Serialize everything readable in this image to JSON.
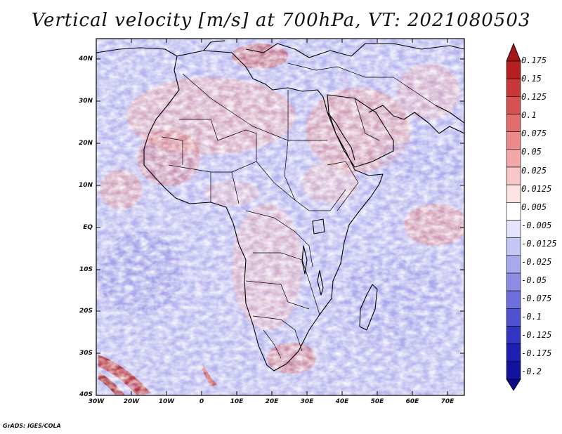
{
  "title": "Vertical velocity [m/s] at 700hPa, VT: 2021080503",
  "credit": "GrADS: IGES/COLA",
  "map": {
    "lon_range": [
      -30,
      75
    ],
    "lat_range": [
      -40,
      45
    ],
    "lat_labels": [
      "40N",
      "30N",
      "20N",
      "10N",
      "EQ",
      "10S",
      "20S",
      "30S",
      "40S"
    ],
    "lon_labels": [
      "30W",
      "20W",
      "10W",
      "0",
      "10E",
      "20E",
      "30E",
      "40E",
      "50E",
      "60E",
      "70E"
    ],
    "variable": "Vertical velocity",
    "units": "m/s",
    "level": "700hPa",
    "valid_time": "2021080503"
  },
  "colorbar": {
    "labels": [
      "0.175",
      "0.15",
      "0.125",
      "0.1",
      "0.075",
      "0.05",
      "0.025",
      "0.0125",
      "0.005",
      "-0.005",
      "-0.0125",
      "-0.025",
      "-0.05",
      "-0.075",
      "-0.1",
      "-0.125",
      "-0.175",
      "-0.2"
    ],
    "colors": [
      "#b51f1f",
      "#c83838",
      "#d55252",
      "#e16d6d",
      "#ea8a8a",
      "#f2a8a8",
      "#f8c7c7",
      "#fce4e4",
      "#ffffff",
      "#e4e4fc",
      "#c7c7f6",
      "#a9a9ee",
      "#8c8ce6",
      "#6e6edc",
      "#5050d0",
      "#3434c2",
      "#1e1eb0",
      "#12129e"
    ],
    "top_arrow_color": "#a01818",
    "bottom_arrow_color": "#0c0c8a"
  }
}
